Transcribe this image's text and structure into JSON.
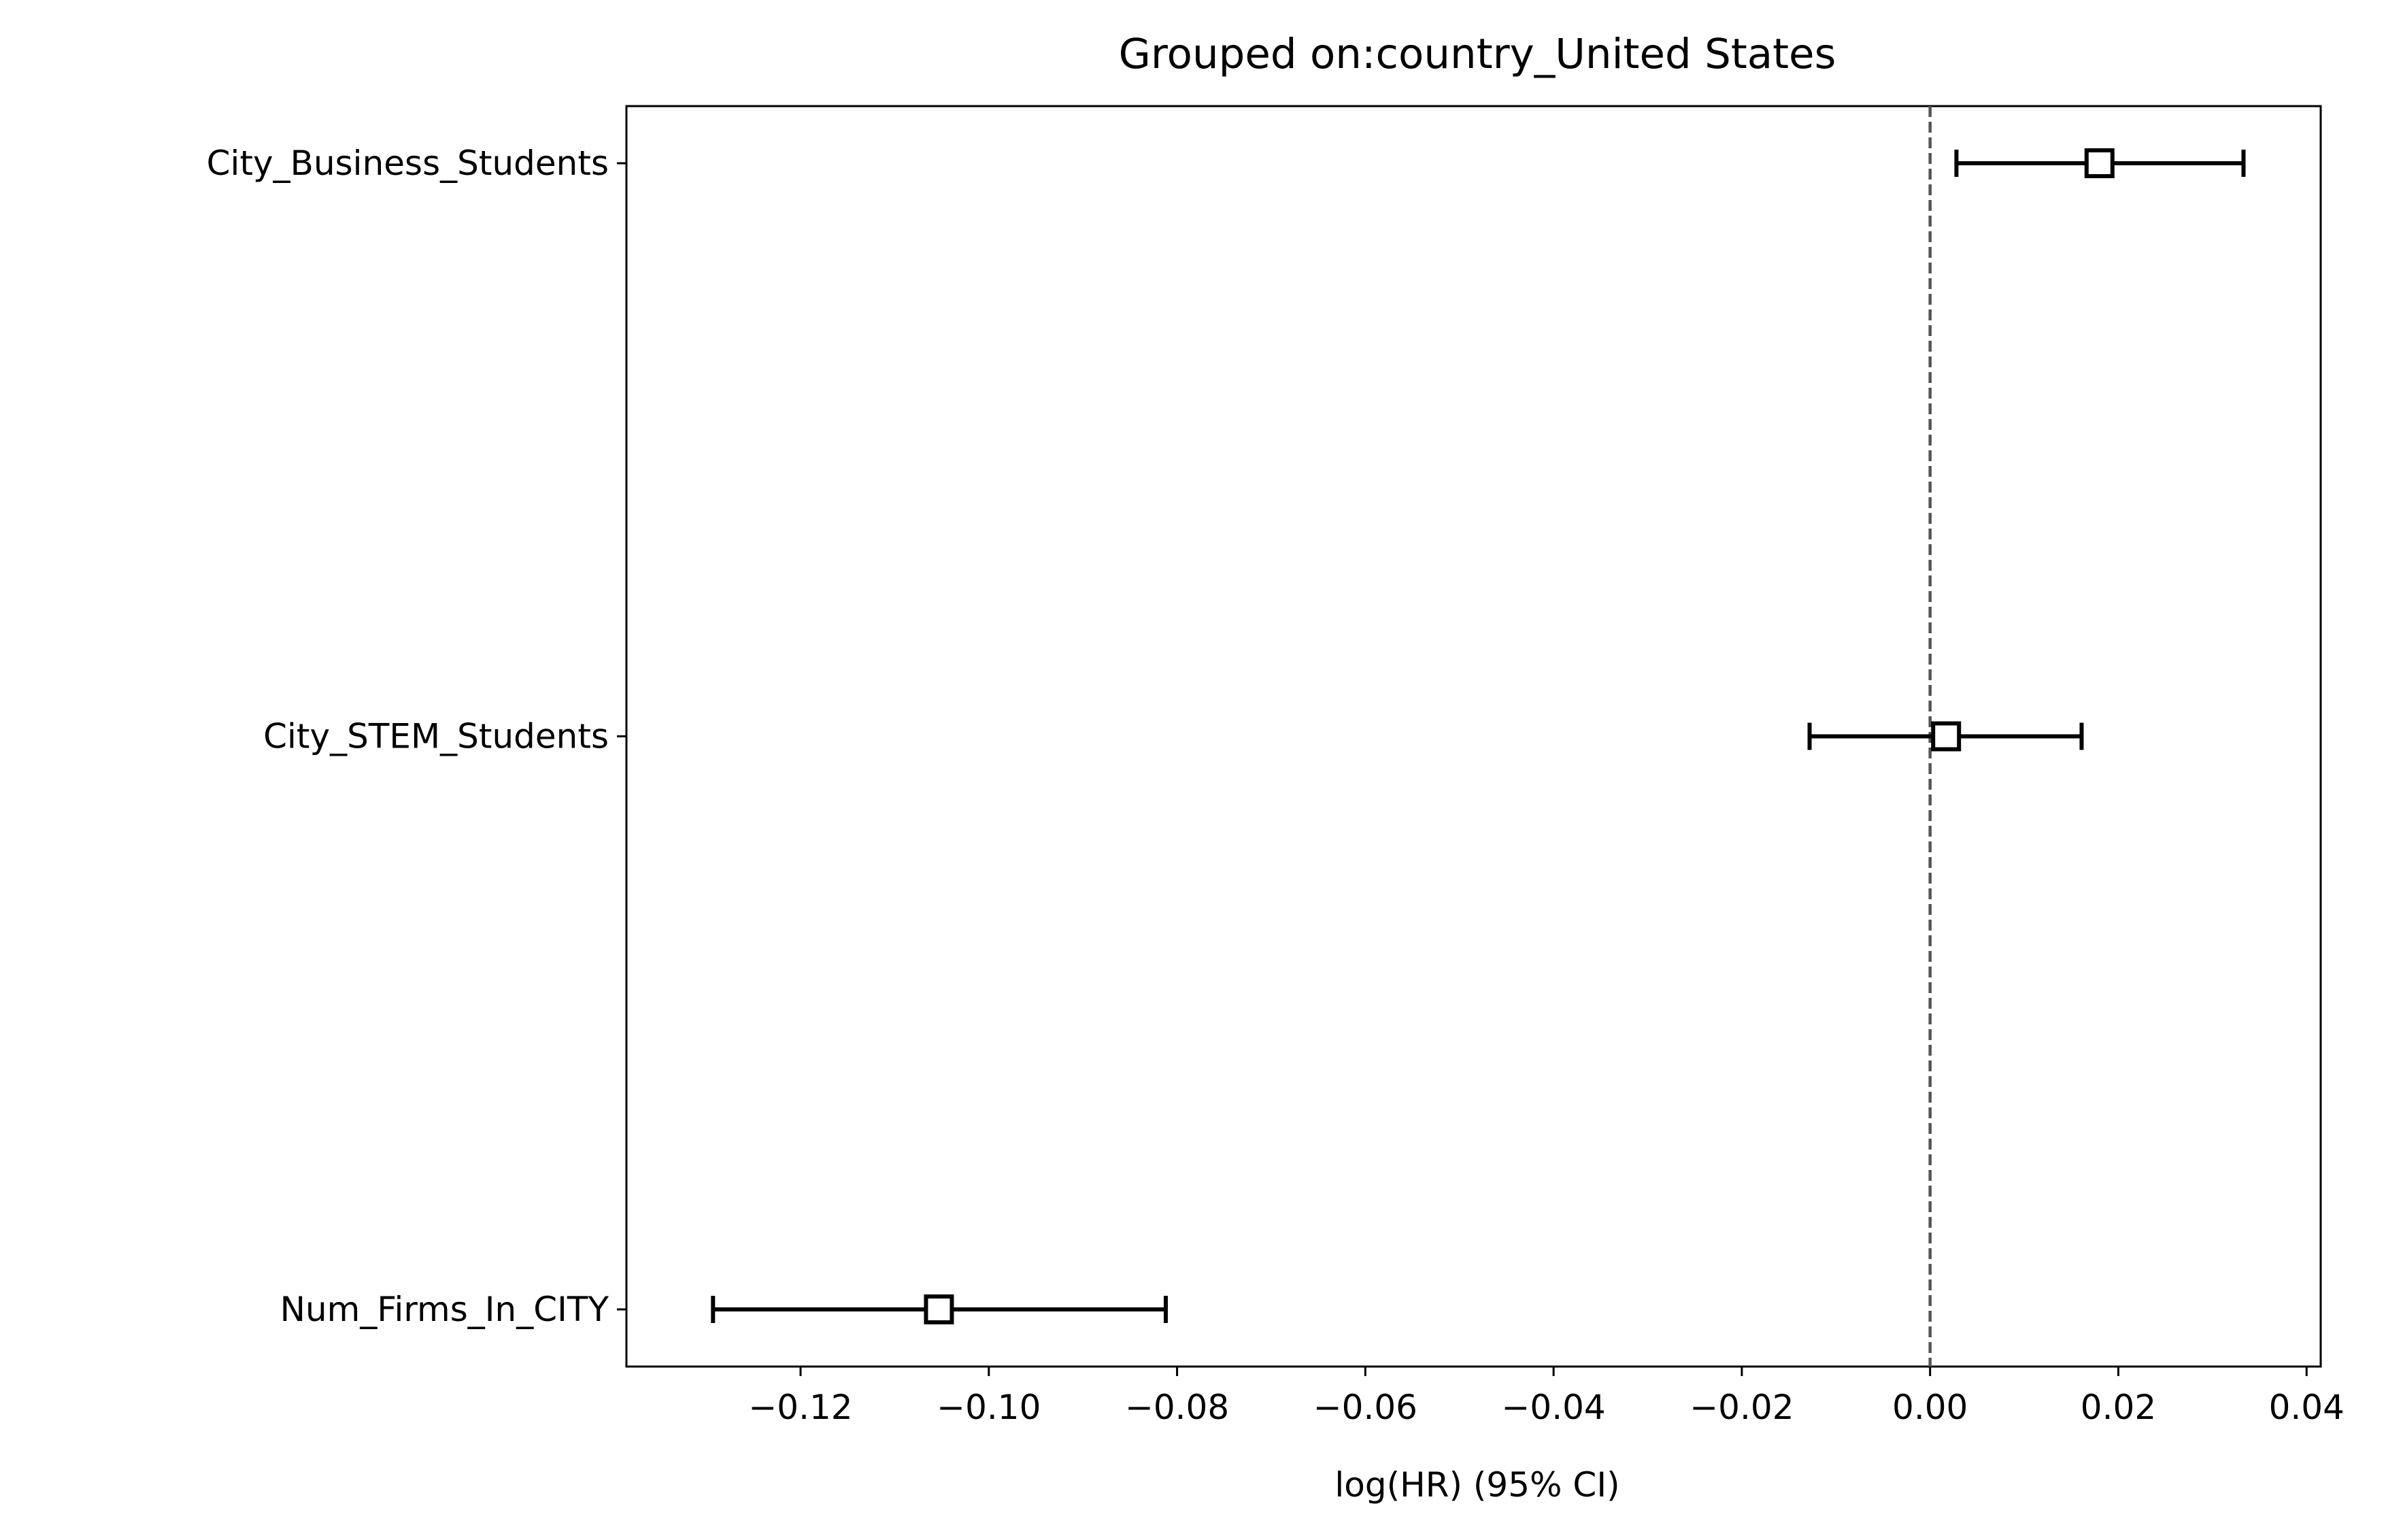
{
  "chart_data": {
    "type": "forest",
    "title": "Grouped on:country_United States",
    "xlabel": "log(HR) (95% CI)",
    "ylabel": "",
    "xlim": [
      -0.1385,
      0.0415
    ],
    "x_ticks": [
      -0.12,
      -0.1,
      -0.08,
      -0.06,
      -0.04,
      -0.02,
      0.0,
      0.02,
      0.04
    ],
    "x_tick_labels": [
      "−0.12",
      "−0.10",
      "−0.08",
      "−0.06",
      "−0.04",
      "−0.02",
      "0.00",
      "0.02",
      "0.04"
    ],
    "reference_line": 0,
    "grid": false,
    "rows": [
      {
        "label": "City_Business_Students",
        "coef": 0.018,
        "lower": 0.0028,
        "upper": 0.0333
      },
      {
        "label": "City_STEM_Students",
        "coef": 0.0017,
        "lower": -0.0128,
        "upper": 0.0161
      },
      {
        "label": "Num_Firms_In_CITY",
        "coef": -0.1053,
        "lower": -0.1293,
        "upper": -0.0812
      }
    ],
    "colors": {
      "marks": "#000000",
      "reference_line": "#555555",
      "marker_fill": "#ffffff"
    }
  }
}
